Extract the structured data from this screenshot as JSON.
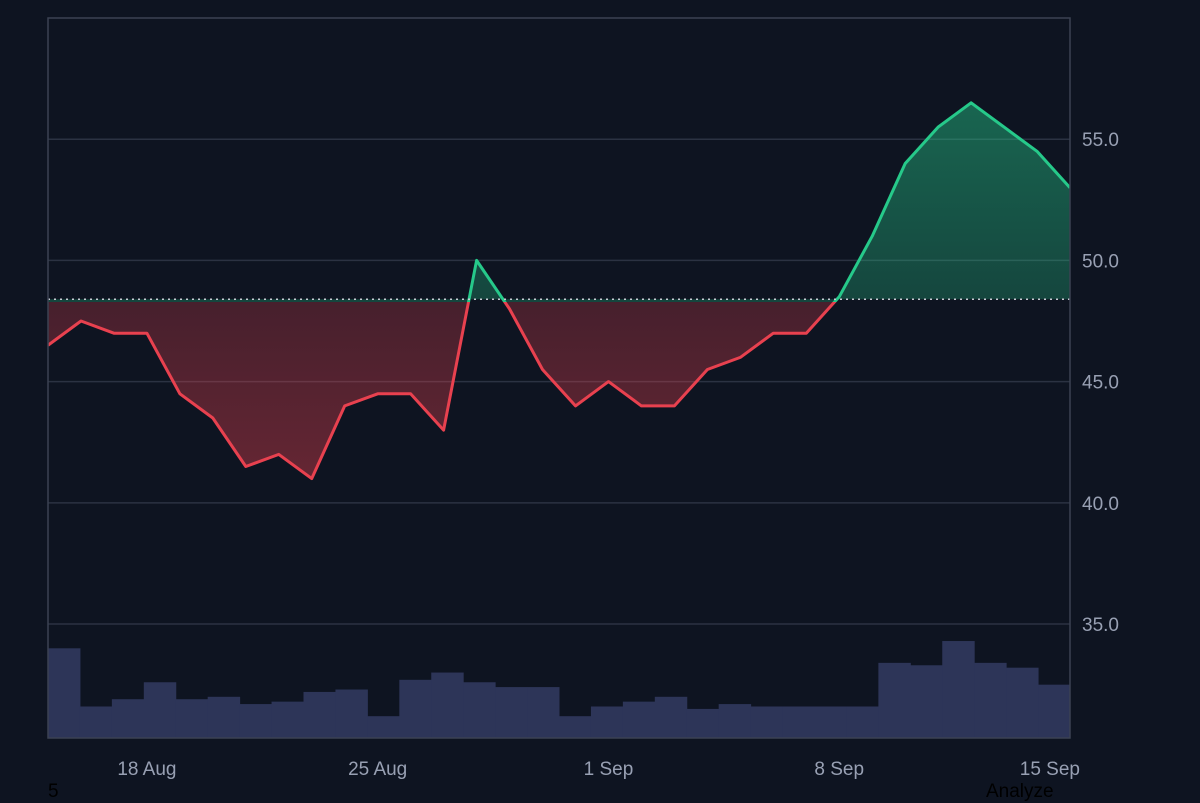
{
  "chart_data": {
    "type": "area",
    "baseline": 48.4,
    "ylim": [
      30.3,
      60.0
    ],
    "y_ticks": [
      "55.0",
      "50.0",
      "45.0",
      "40.0",
      "35.0"
    ],
    "x_ticks": [
      "18 Aug",
      "25 Aug",
      "1 Sep",
      "8 Sep",
      "15 Sep"
    ],
    "x": [
      "15 Aug",
      "16 Aug",
      "17 Aug",
      "18 Aug",
      "19 Aug",
      "20 Aug",
      "21 Aug",
      "22 Aug",
      "23 Aug",
      "24 Aug",
      "25 Aug",
      "26 Aug",
      "27 Aug",
      "28 Aug",
      "29 Aug",
      "30 Aug",
      "31 Aug",
      "1 Sep",
      "2 Sep",
      "3 Sep",
      "4 Sep",
      "5 Sep",
      "6 Sep",
      "7 Sep",
      "8 Sep",
      "9 Sep",
      "10 Sep",
      "11 Sep",
      "12 Sep",
      "13 Sep",
      "14 Sep",
      "15 Sep"
    ],
    "price": [
      46.5,
      47.5,
      47.0,
      47.0,
      44.5,
      43.5,
      41.5,
      42.0,
      41.0,
      44.0,
      44.5,
      44.5,
      43.0,
      50.0,
      48.0,
      45.5,
      44.0,
      45.0,
      44.0,
      44.0,
      45.5,
      46.0,
      47.0,
      47.0,
      48.5,
      51.0,
      54.0,
      55.5,
      56.5,
      55.5,
      54.5,
      53.0
    ],
    "volume": [
      34.0,
      31.6,
      31.9,
      32.6,
      31.9,
      32.0,
      31.7,
      31.8,
      32.2,
      32.3,
      31.2,
      32.7,
      33.0,
      32.6,
      32.4,
      32.4,
      31.2,
      31.6,
      31.8,
      32.0,
      31.5,
      31.7,
      31.6,
      31.6,
      31.6,
      31.6,
      33.4,
      33.3,
      34.3,
      33.4,
      33.2,
      32.5
    ],
    "colors": {
      "up": "#26c98a",
      "down": "#e8414f",
      "volume": "#2d3558",
      "grid": "#2b3242",
      "frame": "#3b4252",
      "baseline": "#c8ccd4"
    }
  },
  "footer": {
    "left_text": "5",
    "right_text": "Analyze"
  }
}
